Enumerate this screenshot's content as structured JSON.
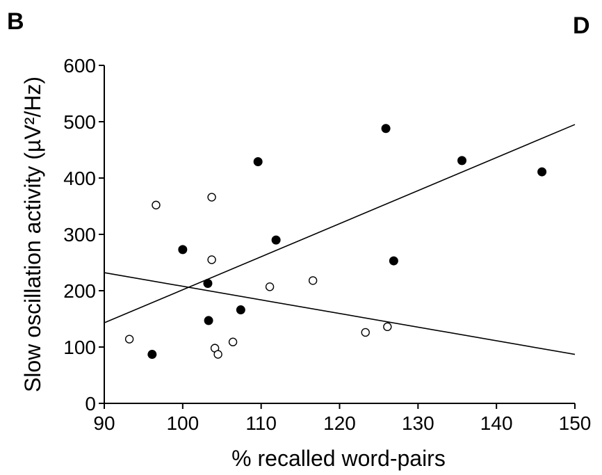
{
  "panel_labels": {
    "left": "B",
    "right": "D"
  },
  "chart_data": {
    "type": "scatter",
    "title": "",
    "xlabel": "% recalled word-pairs",
    "ylabel": "Slow oscillation activity (µV²/Hz)",
    "xlim": [
      90,
      150
    ],
    "ylim": [
      0,
      600
    ],
    "xticks": [
      90,
      100,
      110,
      120,
      130,
      140,
      150
    ],
    "yticks": [
      0,
      100,
      200,
      300,
      400,
      500,
      600
    ],
    "grid": false,
    "series": [
      {
        "marker": "filled-circle",
        "color": "#000000",
        "x": [
          96.1,
          100.0,
          103.2,
          103.3,
          107.4,
          109.6,
          111.9,
          125.9,
          126.9,
          135.6,
          145.8
        ],
        "y": [
          87,
          273,
          213,
          147,
          166,
          429,
          290,
          488,
          253,
          431,
          411
        ],
        "fit_line": {
          "x": [
            90,
            150
          ],
          "y": [
            143,
            495
          ]
        }
      },
      {
        "marker": "open-circle",
        "color": "#000000",
        "x": [
          93.2,
          96.6,
          103.7,
          103.7,
          104.1,
          104.5,
          106.4,
          111.1,
          116.6,
          123.3,
          126.1
        ],
        "y": [
          114,
          352,
          366,
          255,
          98,
          87,
          109,
          207,
          218,
          126,
          136
        ],
        "fit_line": {
          "x": [
            90,
            150
          ],
          "y": [
            232,
            87
          ]
        }
      }
    ]
  }
}
